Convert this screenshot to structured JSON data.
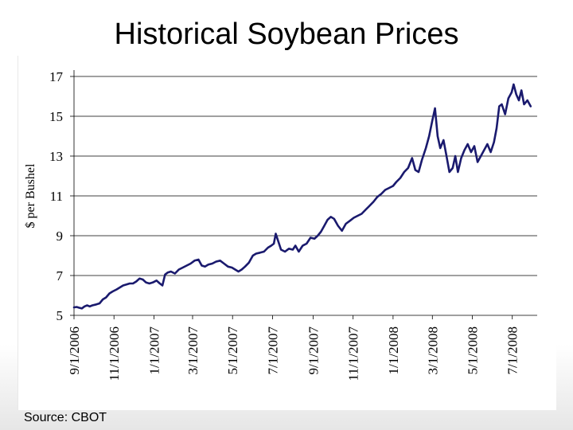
{
  "slide": {
    "title": "Historical Soybean Prices",
    "source": "Source:  CBOT"
  },
  "chart_data": {
    "type": "line",
    "title": "Historical Soybean Prices",
    "xlabel": "",
    "ylabel": "$ per Bushel",
    "ylim": [
      5,
      17
    ],
    "yticks": [
      5,
      7,
      9,
      11,
      13,
      15,
      17
    ],
    "xlim": [
      "2006-09-01",
      "2008-08-08"
    ],
    "xtick_labels": [
      "9/1/2006",
      "11/1/2006",
      "1/1/2007",
      "3/1/2007",
      "5/1/2007",
      "7/1/2007",
      "9/1/2007",
      "11/1/2007",
      "1/1/2008",
      "3/1/2008",
      "5/1/2008",
      "7/1/2008"
    ],
    "xtick_dates": [
      "2006-09-01",
      "2006-11-01",
      "2007-01-01",
      "2007-03-01",
      "2007-05-01",
      "2007-07-01",
      "2007-09-01",
      "2007-11-01",
      "2008-01-01",
      "2008-03-01",
      "2008-05-01",
      "2008-07-01"
    ],
    "grid": "horizontal",
    "line_color": "#1a1a6e",
    "series": [
      {
        "points": [
          [
            "2006-09-01",
            5.4
          ],
          [
            "2006-09-05",
            5.42
          ],
          [
            "2006-09-09",
            5.38
          ],
          [
            "2006-09-13",
            5.35
          ],
          [
            "2006-09-17",
            5.45
          ],
          [
            "2006-09-21",
            5.5
          ],
          [
            "2006-09-25",
            5.45
          ],
          [
            "2006-09-29",
            5.5
          ],
          [
            "2006-10-05",
            5.55
          ],
          [
            "2006-10-10",
            5.6
          ],
          [
            "2006-10-15",
            5.8
          ],
          [
            "2006-10-20",
            5.9
          ],
          [
            "2006-10-25",
            6.1
          ],
          [
            "2006-10-30",
            6.2
          ],
          [
            "2006-11-05",
            6.3
          ],
          [
            "2006-11-10",
            6.4
          ],
          [
            "2006-11-15",
            6.5
          ],
          [
            "2006-11-20",
            6.55
          ],
          [
            "2006-11-25",
            6.6
          ],
          [
            "2006-11-30",
            6.6
          ],
          [
            "2006-12-05",
            6.7
          ],
          [
            "2006-12-10",
            6.85
          ],
          [
            "2006-12-15",
            6.8
          ],
          [
            "2006-12-20",
            6.65
          ],
          [
            "2006-12-25",
            6.6
          ],
          [
            "2006-12-30",
            6.65
          ],
          [
            "2007-01-05",
            6.75
          ],
          [
            "2007-01-10",
            6.6
          ],
          [
            "2007-01-14",
            6.5
          ],
          [
            "2007-01-18",
            7.05
          ],
          [
            "2007-01-22",
            7.15
          ],
          [
            "2007-01-27",
            7.2
          ],
          [
            "2007-02-02",
            7.1
          ],
          [
            "2007-02-08",
            7.3
          ],
          [
            "2007-02-14",
            7.4
          ],
          [
            "2007-02-20",
            7.5
          ],
          [
            "2007-02-26",
            7.6
          ],
          [
            "2007-03-04",
            7.75
          ],
          [
            "2007-03-10",
            7.8
          ],
          [
            "2007-03-15",
            7.5
          ],
          [
            "2007-03-20",
            7.45
          ],
          [
            "2007-03-25",
            7.55
          ],
          [
            "2007-03-31",
            7.6
          ],
          [
            "2007-04-06",
            7.7
          ],
          [
            "2007-04-12",
            7.75
          ],
          [
            "2007-04-18",
            7.6
          ],
          [
            "2007-04-24",
            7.45
          ],
          [
            "2007-04-30",
            7.4
          ],
          [
            "2007-05-05",
            7.3
          ],
          [
            "2007-05-10",
            7.2
          ],
          [
            "2007-05-15",
            7.3
          ],
          [
            "2007-05-20",
            7.45
          ],
          [
            "2007-05-26",
            7.65
          ],
          [
            "2007-06-01",
            8.0
          ],
          [
            "2007-06-06",
            8.1
          ],
          [
            "2007-06-12",
            8.15
          ],
          [
            "2007-06-18",
            8.2
          ],
          [
            "2007-06-24",
            8.4
          ],
          [
            "2007-06-29",
            8.5
          ],
          [
            "2007-07-03",
            8.6
          ],
          [
            "2007-07-06",
            9.1
          ],
          [
            "2007-07-10",
            8.7
          ],
          [
            "2007-07-14",
            8.3
          ],
          [
            "2007-07-20",
            8.2
          ],
          [
            "2007-07-26",
            8.35
          ],
          [
            "2007-08-01",
            8.3
          ],
          [
            "2007-08-05",
            8.5
          ],
          [
            "2007-08-10",
            8.2
          ],
          [
            "2007-08-16",
            8.5
          ],
          [
            "2007-08-22",
            8.6
          ],
          [
            "2007-08-28",
            8.9
          ],
          [
            "2007-09-03",
            8.85
          ],
          [
            "2007-09-08",
            9.0
          ],
          [
            "2007-09-13",
            9.2
          ],
          [
            "2007-09-18",
            9.5
          ],
          [
            "2007-09-23",
            9.8
          ],
          [
            "2007-09-28",
            9.95
          ],
          [
            "2007-10-03",
            9.85
          ],
          [
            "2007-10-09",
            9.5
          ],
          [
            "2007-10-15",
            9.25
          ],
          [
            "2007-10-21",
            9.6
          ],
          [
            "2007-10-27",
            9.75
          ],
          [
            "2007-11-02",
            9.9
          ],
          [
            "2007-11-08",
            10.0
          ],
          [
            "2007-11-14",
            10.1
          ],
          [
            "2007-11-20",
            10.3
          ],
          [
            "2007-11-26",
            10.5
          ],
          [
            "2007-12-02",
            10.7
          ],
          [
            "2007-12-08",
            10.95
          ],
          [
            "2007-12-14",
            11.1
          ],
          [
            "2007-12-20",
            11.3
          ],
          [
            "2007-12-26",
            11.4
          ],
          [
            "2008-01-01",
            11.5
          ],
          [
            "2008-01-06",
            11.7
          ],
          [
            "2008-01-12",
            11.9
          ],
          [
            "2008-01-18",
            12.2
          ],
          [
            "2008-01-24",
            12.4
          ],
          [
            "2008-01-30",
            12.9
          ],
          [
            "2008-02-04",
            12.3
          ],
          [
            "2008-02-09",
            12.2
          ],
          [
            "2008-02-14",
            12.8
          ],
          [
            "2008-02-20",
            13.4
          ],
          [
            "2008-02-25",
            14.0
          ],
          [
            "2008-03-01",
            14.8
          ],
          [
            "2008-03-05",
            15.4
          ],
          [
            "2008-03-09",
            14.0
          ],
          [
            "2008-03-13",
            13.4
          ],
          [
            "2008-03-18",
            13.8
          ],
          [
            "2008-03-22",
            13.1
          ],
          [
            "2008-03-27",
            12.2
          ],
          [
            "2008-04-01",
            12.4
          ],
          [
            "2008-04-05",
            13.0
          ],
          [
            "2008-04-09",
            12.2
          ],
          [
            "2008-04-14",
            12.9
          ],
          [
            "2008-04-19",
            13.3
          ],
          [
            "2008-04-24",
            13.6
          ],
          [
            "2008-04-29",
            13.2
          ],
          [
            "2008-05-04",
            13.5
          ],
          [
            "2008-05-09",
            12.7
          ],
          [
            "2008-05-14",
            13.0
          ],
          [
            "2008-05-19",
            13.3
          ],
          [
            "2008-05-24",
            13.6
          ],
          [
            "2008-05-29",
            13.2
          ],
          [
            "2008-06-03",
            13.7
          ],
          [
            "2008-06-07",
            14.4
          ],
          [
            "2008-06-11",
            15.5
          ],
          [
            "2008-06-15",
            15.6
          ],
          [
            "2008-06-20",
            15.1
          ],
          [
            "2008-06-25",
            15.9
          ],
          [
            "2008-06-30",
            16.2
          ],
          [
            "2008-07-03",
            16.6
          ],
          [
            "2008-07-07",
            16.1
          ],
          [
            "2008-07-11",
            15.8
          ],
          [
            "2008-07-15",
            16.3
          ],
          [
            "2008-07-19",
            15.6
          ],
          [
            "2008-07-24",
            15.8
          ],
          [
            "2008-07-29",
            15.5
          ]
        ]
      }
    ]
  }
}
